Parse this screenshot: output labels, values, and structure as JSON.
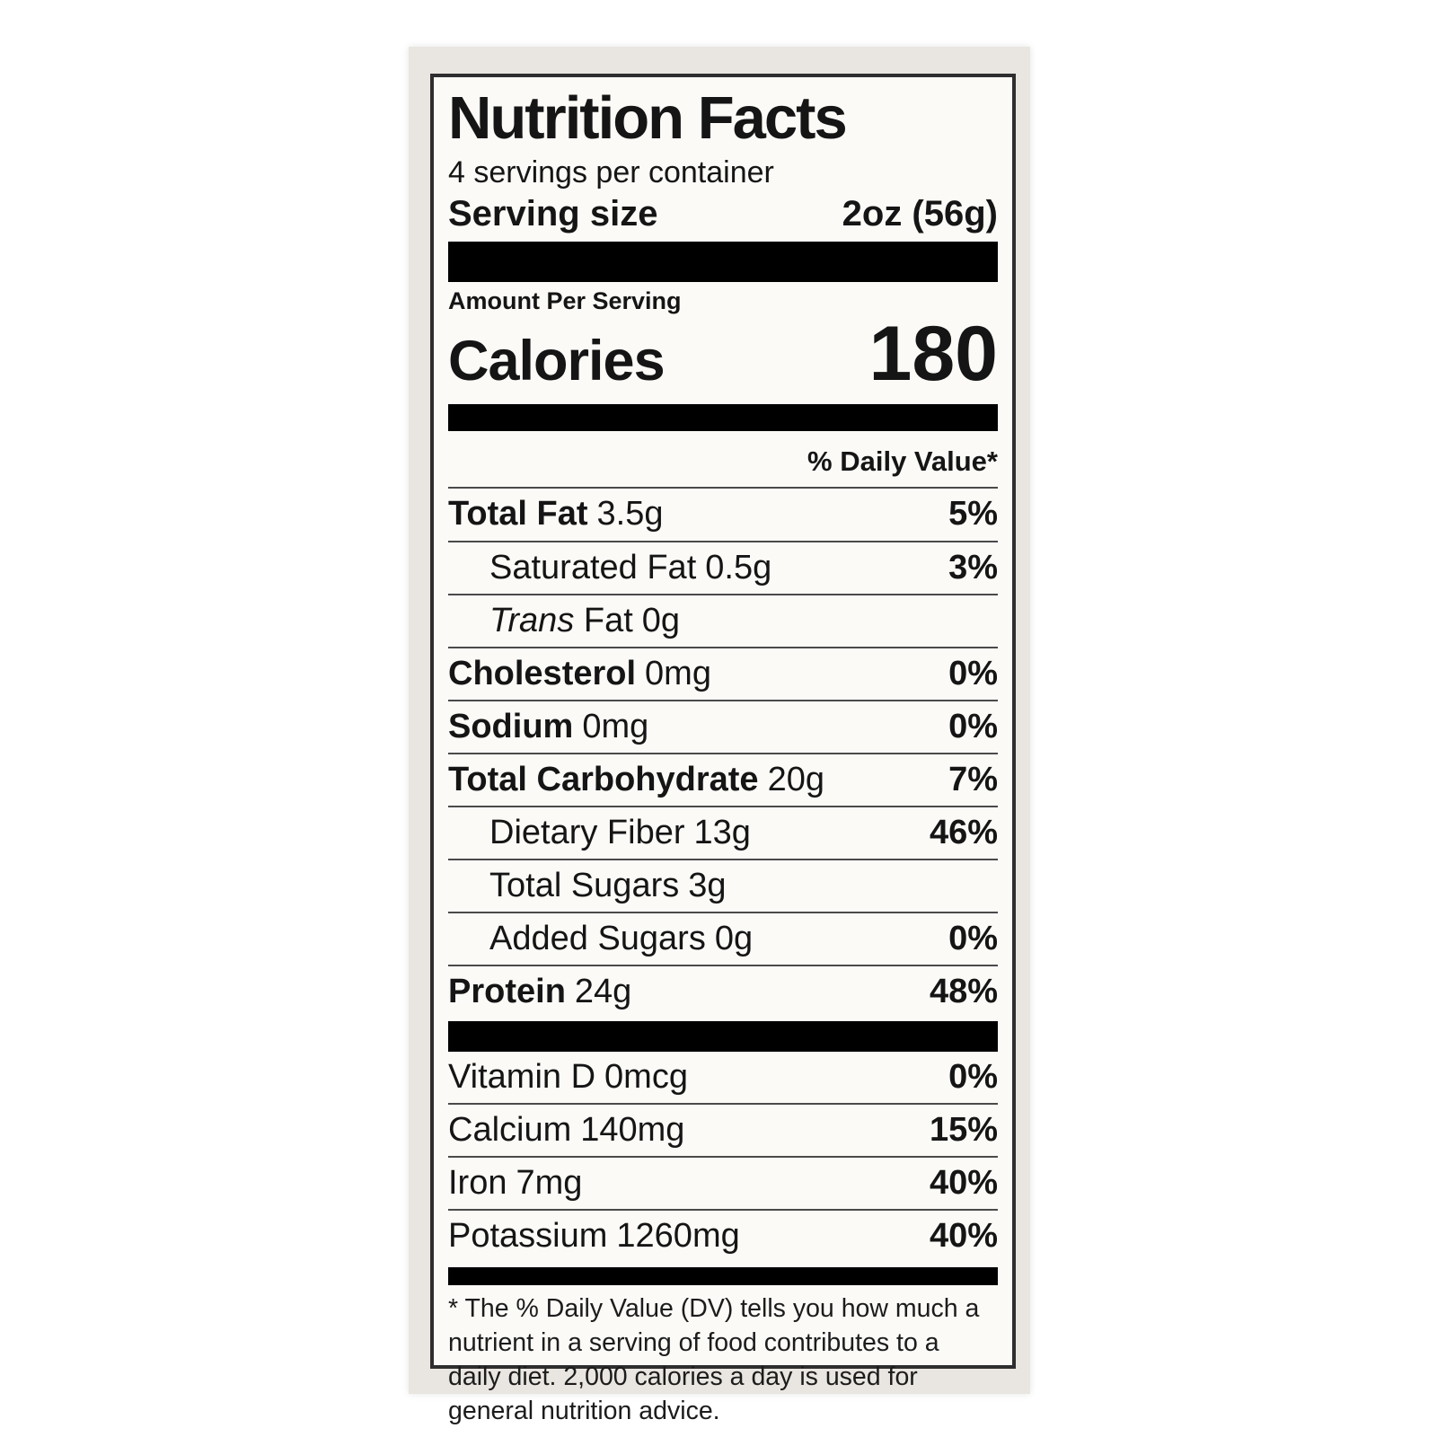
{
  "colors": {
    "bar": "#000000",
    "text": "#151515",
    "sticker_paper": "#e9e6e1",
    "label_paper": "#fbfaf7"
  },
  "nutrition": {
    "title": "Nutrition Facts",
    "servings_per_container": "4 servings per container",
    "serving_size": {
      "label": "Serving size",
      "value": "2oz (56g)"
    },
    "amount_per_serving": "Amount Per Serving",
    "calories": {
      "label": "Calories",
      "value": "180"
    },
    "daily_value_header": "% Daily Value*",
    "nutrients": [
      {
        "label": "Total Fat",
        "amount": "3.5g",
        "dv": "5%"
      },
      {
        "label": "Saturated Fat",
        "amount": "0.5g",
        "dv": "3%"
      },
      {
        "label_italic": "Trans",
        "label": "Fat",
        "amount": "0g",
        "dv": ""
      },
      {
        "label": "Cholesterol",
        "amount": "0mg",
        "dv": "0%"
      },
      {
        "label": "Sodium",
        "amount": "0mg",
        "dv": "0%"
      },
      {
        "label": "Total Carbohydrate",
        "amount": "20g",
        "dv": "7%"
      },
      {
        "label": "Dietary Fiber",
        "amount": "13g",
        "dv": "46%"
      },
      {
        "label": "Total Sugars",
        "amount": "3g",
        "dv": ""
      },
      {
        "label": "Added Sugars",
        "amount": "0g",
        "dv": "0%"
      },
      {
        "label": "Protein",
        "amount": "24g",
        "dv": "48%"
      }
    ],
    "micronutrients": [
      {
        "label": "Vitamin D",
        "amount": "0mcg",
        "dv": "0%"
      },
      {
        "label": "Calcium",
        "amount": "140mg",
        "dv": "15%"
      },
      {
        "label": "Iron",
        "amount": "7mg",
        "dv": "40%"
      },
      {
        "label": "Potassium",
        "amount": "1260mg",
        "dv": "40%"
      }
    ],
    "footnote": "* The % Daily Value (DV) tells you how much a nutrient in a serving of food contributes to a daily diet. 2,000 calories a day is used for general nutrition advice."
  }
}
